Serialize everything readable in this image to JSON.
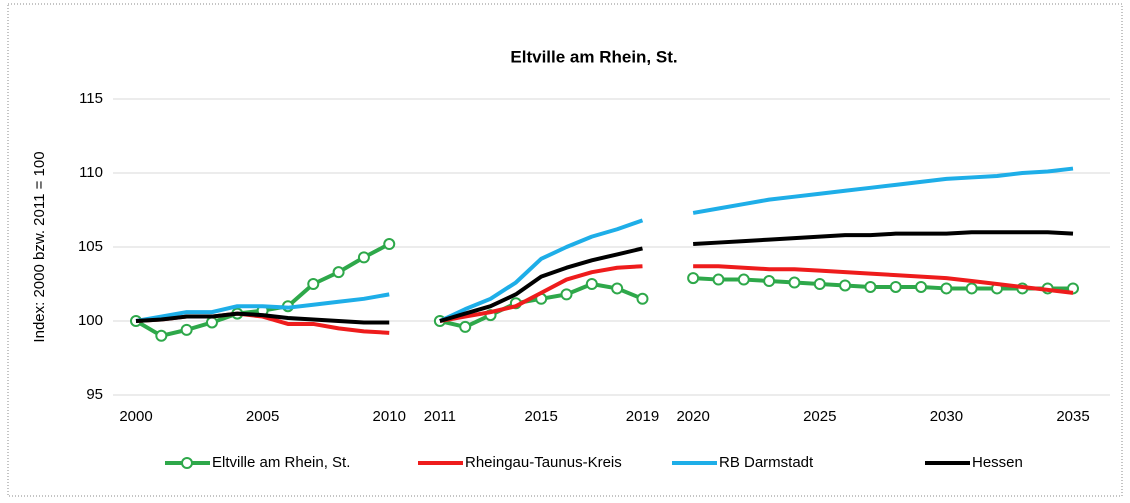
{
  "chart_data": {
    "type": "line",
    "title": "Eltville am Rhein, St.",
    "ylabel": "Index: 2000 bzw. 2011 = 100",
    "categories": [
      "2000",
      null,
      null,
      null,
      null,
      "2005",
      null,
      null,
      null,
      null,
      "2010",
      null,
      "2011",
      null,
      null,
      null,
      "2015",
      null,
      null,
      null,
      "2019",
      null,
      "2020",
      null,
      null,
      null,
      null,
      "2025",
      null,
      null,
      null,
      null,
      "2030",
      null,
      null,
      null,
      null,
      "2035"
    ],
    "series": [
      {
        "name": "Eltville am Rhein, St.",
        "color": "#2ea84a",
        "marker": "circle",
        "values": [
          100,
          99.0,
          99.4,
          99.9,
          100.5,
          100.7,
          101.0,
          102.5,
          103.3,
          104.3,
          105.2,
          null,
          100,
          99.6,
          100.4,
          101.2,
          101.5,
          101.8,
          102.5,
          102.2,
          101.5,
          null,
          102.9,
          102.8,
          102.8,
          102.7,
          102.6,
          102.5,
          102.4,
          102.3,
          102.3,
          102.3,
          102.2,
          102.2,
          102.2,
          102.2,
          102.2,
          102.2
        ]
      },
      {
        "name": "Rheingau-Taunus-Kreis",
        "color": "#ee1c1c",
        "values": [
          100,
          100.1,
          100.3,
          100.3,
          100.5,
          100.3,
          99.8,
          99.8,
          99.5,
          99.3,
          99.2,
          null,
          100,
          100.3,
          100.6,
          101.0,
          101.9,
          102.8,
          103.3,
          103.6,
          103.7,
          null,
          103.7,
          103.7,
          103.6,
          103.5,
          103.5,
          103.4,
          103.3,
          103.2,
          103.1,
          103.0,
          102.9,
          102.7,
          102.5,
          102.3,
          102.1,
          101.9
        ]
      },
      {
        "name": "RB Darmstadt",
        "color": "#1eaee8",
        "values": [
          100,
          100.3,
          100.6,
          100.6,
          101.0,
          101.0,
          100.9,
          101.1,
          101.3,
          101.5,
          101.8,
          null,
          100,
          100.8,
          101.5,
          102.6,
          104.2,
          105.0,
          105.7,
          106.2,
          106.8,
          null,
          107.3,
          107.6,
          107.9,
          108.2,
          108.4,
          108.6,
          108.8,
          109.0,
          109.2,
          109.4,
          109.6,
          109.7,
          109.8,
          110.0,
          110.1,
          110.3
        ]
      },
      {
        "name": "Hessen",
        "color": "#000000",
        "values": [
          100,
          100.1,
          100.3,
          100.3,
          100.5,
          100.4,
          100.2,
          100.1,
          100.0,
          99.9,
          99.9,
          null,
          100,
          100.5,
          101.0,
          101.8,
          103.0,
          103.6,
          104.1,
          104.5,
          104.9,
          null,
          105.2,
          105.3,
          105.4,
          105.5,
          105.6,
          105.7,
          105.8,
          105.8,
          105.9,
          105.9,
          105.9,
          106.0,
          106.0,
          106.0,
          106.0,
          105.9
        ]
      }
    ],
    "ylim": [
      95,
      115
    ],
    "yticks": [
      95,
      100,
      105,
      110,
      115
    ],
    "grid": true,
    "legend": "bottom"
  }
}
